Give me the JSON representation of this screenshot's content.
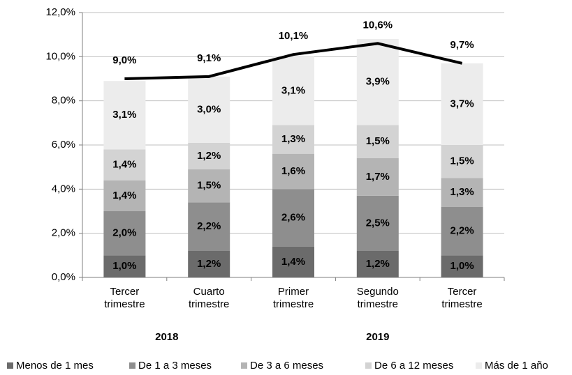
{
  "chart_data": {
    "type": "bar",
    "categories": [
      "Tercer trimestre",
      "Cuarto trimestre",
      "Primer trimestre",
      "Segundo trimestre",
      "Tercer trimestre"
    ],
    "groups": [
      {
        "label": "2018",
        "count": 2
      },
      {
        "label": "2019",
        "count": 3
      }
    ],
    "stacked": true,
    "series": [
      {
        "name": "Menos de 1 mes",
        "color": "#6b6b6b",
        "values": [
          1.0,
          1.2,
          1.4,
          1.2,
          1.0
        ],
        "value_labels": [
          "1,0%",
          "1,2%",
          "1,4%",
          "1,2%",
          "1,0%"
        ]
      },
      {
        "name": "De 1 a 3 meses",
        "color": "#8e8e8e",
        "values": [
          2.0,
          2.2,
          2.6,
          2.5,
          2.2
        ],
        "value_labels": [
          "2,0%",
          "2,2%",
          "2,6%",
          "2,5%",
          "2,2%"
        ]
      },
      {
        "name": "De 3 a 6 meses",
        "color": "#b4b4b4",
        "values": [
          1.4,
          1.5,
          1.6,
          1.7,
          1.3
        ],
        "value_labels": [
          "1,4%",
          "1,5%",
          "1,6%",
          "1,7%",
          "1,3%"
        ]
      },
      {
        "name": "De 6 a 12 meses",
        "color": "#d3d3d3",
        "values": [
          1.4,
          1.2,
          1.3,
          1.5,
          1.5
        ],
        "value_labels": [
          "1,4%",
          "1,2%",
          "1,3%",
          "1,5%",
          "1,5%"
        ]
      },
      {
        "name": "Más de 1 año",
        "color": "#ececec",
        "values": [
          3.1,
          3.0,
          3.1,
          3.9,
          3.7
        ],
        "value_labels": [
          "3,1%",
          "3,0%",
          "3,1%",
          "3,9%",
          "3,7%"
        ]
      }
    ],
    "line": {
      "color": "#000000",
      "values": [
        9.0,
        9.1,
        10.1,
        10.6,
        9.7
      ],
      "value_labels": [
        "9,0%",
        "9,1%",
        "10,1%",
        "10,6%",
        "9,7%"
      ]
    },
    "ylim": [
      0,
      12
    ],
    "yticks": [
      {
        "value": 0,
        "label": "0,0%"
      },
      {
        "value": 2,
        "label": "2,0%"
      },
      {
        "value": 4,
        "label": "4,0%"
      },
      {
        "value": 6,
        "label": "6,0%"
      },
      {
        "value": 8,
        "label": "8,0%"
      },
      {
        "value": 10,
        "label": "10,0%"
      },
      {
        "value": 12,
        "label": "12,0%"
      }
    ],
    "grid": true,
    "legend": "bottom"
  }
}
